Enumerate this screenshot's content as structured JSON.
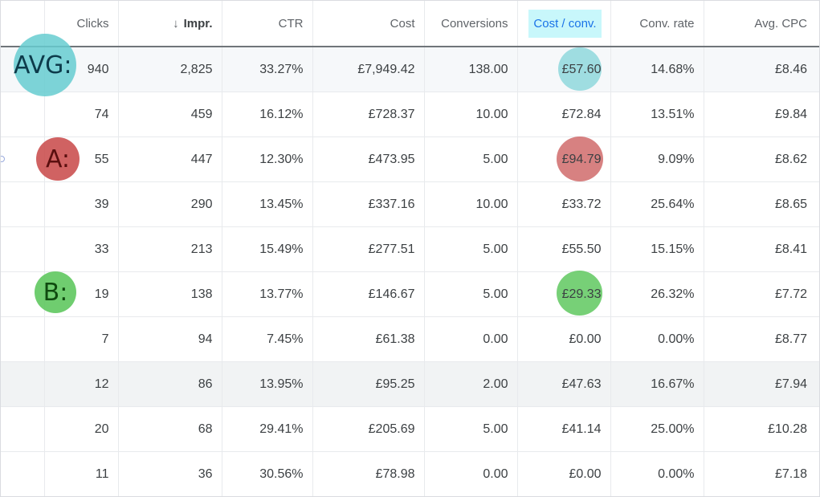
{
  "columns": [
    "Clicks",
    "Impr.",
    "CTR",
    "Cost",
    "Conversions",
    "Cost / conv.",
    "Conv. rate",
    "Avg. CPC"
  ],
  "sort_icon": "arrow-down-icon",
  "highlight_color": "#c8f7fb",
  "rows": [
    [
      "940",
      "2,825",
      "33.27%",
      "£7,949.42",
      "138.00",
      "£57.60",
      "14.68%",
      "£8.46"
    ],
    [
      "74",
      "459",
      "16.12%",
      "£728.37",
      "10.00",
      "£72.84",
      "13.51%",
      "£9.84"
    ],
    [
      "55",
      "447",
      "12.30%",
      "£473.95",
      "5.00",
      "£94.79",
      "9.09%",
      "£8.62"
    ],
    [
      "39",
      "290",
      "13.45%",
      "£337.16",
      "10.00",
      "£33.72",
      "25.64%",
      "£8.65"
    ],
    [
      "33",
      "213",
      "15.49%",
      "£277.51",
      "5.00",
      "£55.50",
      "15.15%",
      "£8.41"
    ],
    [
      "19",
      "138",
      "13.77%",
      "£146.67",
      "5.00",
      "£29.33",
      "26.32%",
      "£7.72"
    ],
    [
      "7",
      "94",
      "7.45%",
      "£61.38",
      "0.00",
      "£0.00",
      "0.00%",
      "£8.77"
    ],
    [
      "12",
      "86",
      "13.95%",
      "£95.25",
      "2.00",
      "£47.63",
      "16.67%",
      "£7.94"
    ],
    [
      "20",
      "68",
      "29.41%",
      "£205.69",
      "5.00",
      "£41.14",
      "25.00%",
      "£10.28"
    ],
    [
      "11",
      "36",
      "30.56%",
      "£78.98",
      "0.00",
      "£0.00",
      "0.00%",
      "£7.18"
    ]
  ],
  "annotations": {
    "avg": {
      "label": "AVG:",
      "color": "#66ccd0"
    },
    "a": {
      "label": "A:",
      "color": "#c84646"
    },
    "b": {
      "label": "B:",
      "color": "#5fc85f"
    }
  }
}
